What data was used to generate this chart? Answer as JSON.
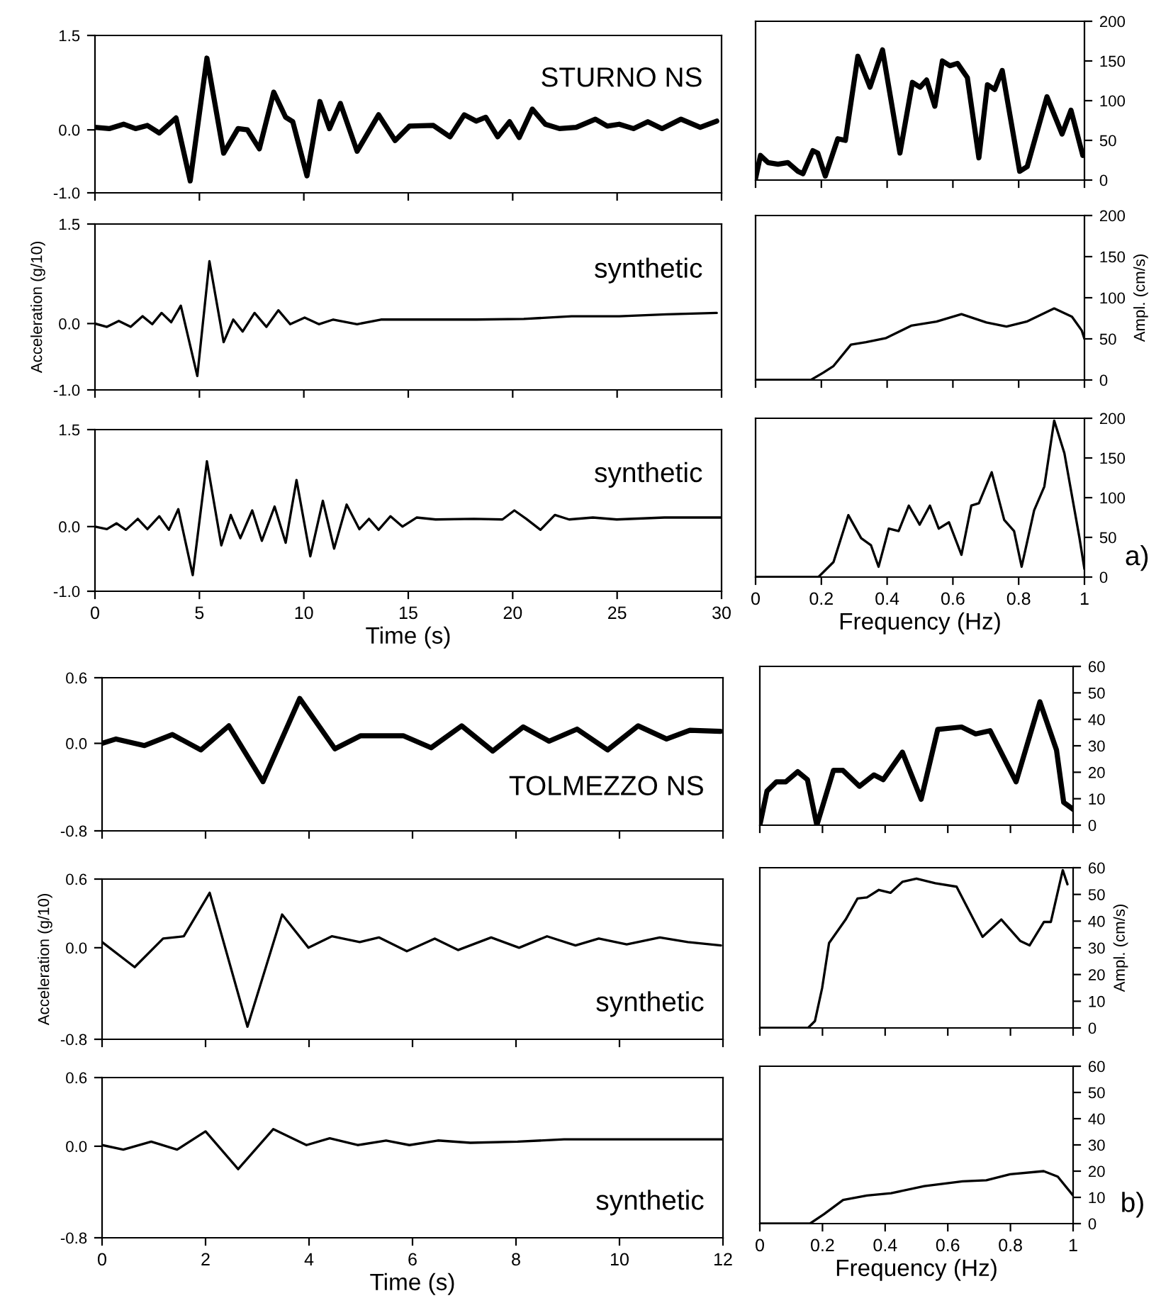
{
  "chart_data": [
    {
      "type": "line",
      "x": [
        0,
        0.68,
        1.37,
        1.94,
        2.51,
        3.08,
        3.88,
        4.56,
        5.36,
        6.16,
        6.85,
        7.3,
        7.87,
        8.56,
        9.13,
        9.47,
        10.15,
        10.77,
        11.23,
        11.75,
        12.55,
        13.58,
        14.37,
        15.06,
        16.2,
        17.0,
        17.68,
        18.25,
        18.71,
        19.28,
        19.85,
        20.31,
        20.94,
        21.56,
        22.24,
        23.04,
        23.96,
        24.53,
        25.1,
        25.78,
        26.47,
        27.15,
        28.06,
        28.98,
        29.77
      ],
      "series": [
        {
          "color": "#000000",
          "values": [
            0.04,
            0.02,
            0.09,
            0.02,
            0.07,
            -0.05,
            0.19,
            -0.81,
            1.14,
            -0.37,
            0.02,
            0,
            -0.3,
            0.6,
            0.2,
            0.13,
            -0.73,
            0.45,
            0.02,
            0.42,
            -0.34,
            0.24,
            -0.17,
            0.06,
            0.07,
            -0.11,
            0.24,
            0.14,
            0.2,
            -0.11,
            0.13,
            -0.12,
            0.33,
            0.09,
            0.02,
            0.04,
            0.17,
            0.06,
            0.09,
            0.02,
            0.13,
            0.02,
            0.17,
            0.04,
            0.14
          ]
        }
      ],
      "xlim": [
        0,
        30
      ],
      "ylim": [
        -1,
        1.5
      ],
      "xticks": [
        0,
        5,
        10,
        15,
        20,
        25,
        30
      ],
      "yticks": [
        {
          "value": -1,
          "label": "-1.0"
        },
        {
          "value": 0,
          "label": "0.0"
        },
        {
          "value": 1.5,
          "label": "1.5"
        }
      ],
      "tick_labels": "y",
      "annotations": [
        "STURNO NS"
      ]
    },
    {
      "type": "line",
      "x": [
        0,
        0.015,
        0.038,
        0.068,
        0.098,
        0.129,
        0.144,
        0.174,
        0.189,
        0.212,
        0.25,
        0.273,
        0.311,
        0.348,
        0.386,
        0.439,
        0.477,
        0.5,
        0.52,
        0.545,
        0.568,
        0.591,
        0.614,
        0.644,
        0.679,
        0.705,
        0.727,
        0.75,
        0.803,
        0.826,
        0.886,
        0.932,
        0.959,
        0.995
      ],
      "series": [
        {
          "color": "#000000",
          "values": [
            2,
            31,
            22,
            20,
            22,
            11,
            8,
            37,
            34,
            5,
            52,
            50,
            156,
            117,
            164,
            34,
            123,
            117,
            126,
            93,
            150,
            144,
            147,
            129,
            28,
            120,
            114,
            138,
            11,
            17,
            105,
            58,
            88,
            31
          ]
        }
      ],
      "xlim": [
        0,
        1
      ],
      "ylim": [
        0,
        200
      ],
      "xticks": [
        0,
        0.2,
        0.4,
        0.6,
        0.8,
        1
      ],
      "yticks": [
        0,
        50,
        100,
        150,
        200
      ],
      "tick_labels": "y"
    },
    {
      "type": "line",
      "x": [
        0,
        0.57,
        1.14,
        1.71,
        2.28,
        2.74,
        3.19,
        3.65,
        4.11,
        4.9,
        5.48,
        6.16,
        6.62,
        7.07,
        7.64,
        8.21,
        8.78,
        9.35,
        10.04,
        10.72,
        11.41,
        12.55,
        13.69,
        15.97,
        18.25,
        20.53,
        22.82,
        25.1,
        27.38,
        29.77
      ],
      "series": [
        {
          "color": "#000000",
          "values": [
            0,
            -0.05,
            0.04,
            -0.05,
            0.11,
            -0.01,
            0.16,
            0.02,
            0.27,
            -0.79,
            0.94,
            -0.28,
            0.06,
            -0.12,
            0.16,
            -0.05,
            0.2,
            -0.01,
            0.09,
            -0.01,
            0.06,
            -0.01,
            0.06,
            0.06,
            0.06,
            0.07,
            0.11,
            0.11,
            0.14,
            0.16
          ]
        }
      ],
      "xlim": [
        0,
        30
      ],
      "ylim": [
        -1,
        1.5
      ],
      "xticks": [
        0,
        5,
        10,
        15,
        20,
        25,
        30
      ],
      "yticks": [
        {
          "value": -1,
          "label": "-1.0"
        },
        {
          "value": 0,
          "label": "0.0"
        },
        {
          "value": 1.5,
          "label": "1.5"
        }
      ],
      "tick_labels": "y",
      "ylabel": "Acceleration (g/10)",
      "annotations": [
        "synthetic"
      ]
    },
    {
      "type": "line",
      "x": [
        0,
        0.168,
        0.206,
        0.237,
        0.29,
        0.336,
        0.397,
        0.473,
        0.55,
        0.626,
        0.702,
        0.763,
        0.824,
        0.908,
        0.962,
        0.992,
        1.0
      ],
      "series": [
        {
          "color": "#000000",
          "values": [
            0,
            0,
            9,
            17,
            43,
            46,
            51,
            66,
            71,
            80,
            70,
            65,
            71,
            87,
            77,
            60,
            50
          ]
        }
      ],
      "xlim": [
        0,
        1
      ],
      "ylim": [
        0,
        200
      ],
      "xticks": [
        0,
        0.2,
        0.4,
        0.6,
        0.8,
        1
      ],
      "yticks": [
        0,
        50,
        100,
        150,
        200
      ],
      "tick_labels": "y",
      "ylabel": "Ampl. (cm/s)"
    },
    {
      "type": "line",
      "x": [
        0,
        0.57,
        1.03,
        1.48,
        2.05,
        2.51,
        3.08,
        3.54,
        3.99,
        4.68,
        5.36,
        6.05,
        6.5,
        6.96,
        7.53,
        7.99,
        8.6,
        9.13,
        9.65,
        10.31,
        10.91,
        11.45,
        12.05,
        12.66,
        13.12,
        13.58,
        14.15,
        14.72,
        15.4,
        16.31,
        18.14,
        19.51,
        20.08,
        20.65,
        21.33,
        22.02,
        22.7,
        23.84,
        24.98,
        27.26,
        30
      ],
      "series": [
        {
          "color": "#000000",
          "values": [
            0,
            -0.04,
            0.05,
            -0.05,
            0.12,
            -0.04,
            0.16,
            -0.05,
            0.27,
            -0.75,
            1.01,
            -0.29,
            0.18,
            -0.18,
            0.25,
            -0.22,
            0.31,
            -0.25,
            0.72,
            -0.46,
            0.4,
            -0.34,
            0.34,
            -0.04,
            0.12,
            -0.05,
            0.16,
            0,
            0.14,
            0.11,
            0.12,
            0.11,
            0.25,
            0.12,
            -0.05,
            0.18,
            0.11,
            0.14,
            0.11,
            0.14,
            0.14
          ]
        }
      ],
      "xlim": [
        0,
        30
      ],
      "ylim": [
        -1,
        1.5
      ],
      "xticks": [
        0,
        5,
        10,
        15,
        20,
        25,
        30
      ],
      "yticks": [
        {
          "value": -1,
          "label": "-1.0"
        },
        {
          "value": 0,
          "label": "0.0"
        },
        {
          "value": 1.5,
          "label": "1.5"
        }
      ],
      "xlabel": "Time (s)",
      "annotations": [
        "synthetic"
      ]
    },
    {
      "type": "line",
      "x": [
        0,
        0.191,
        0.237,
        0.282,
        0.321,
        0.351,
        0.374,
        0.405,
        0.435,
        0.466,
        0.499,
        0.53,
        0.557,
        0.588,
        0.626,
        0.656,
        0.679,
        0.718,
        0.756,
        0.786,
        0.809,
        0.847,
        0.878,
        0.908,
        0.939,
        0.985,
        1.0
      ],
      "series": [
        {
          "color": "#000000",
          "values": [
            0,
            0,
            19,
            78,
            49,
            40,
            13,
            61,
            58,
            90,
            66,
            90,
            61,
            69,
            28,
            90,
            93,
            132,
            72,
            58,
            13,
            84,
            114,
            197,
            156,
            49,
            10
          ]
        }
      ],
      "xlim": [
        0,
        1
      ],
      "ylim": [
        0,
        200
      ],
      "xticks": [
        0,
        0.2,
        0.4,
        0.6,
        0.8,
        1
      ],
      "yticks": [
        0,
        50,
        100,
        150,
        200
      ],
      "xlabel": "Frequency (Hz)",
      "annotations": [
        "a)"
      ]
    },
    {
      "type": "line",
      "x": [
        0,
        0.27,
        0.82,
        1.36,
        1.91,
        2.45,
        3.11,
        3.82,
        4.5,
        5.0,
        5.82,
        6.36,
        6.95,
        7.55,
        8.14,
        8.64,
        9.18,
        9.77,
        10.36,
        10.91,
        11.36,
        11.95
      ],
      "series": [
        {
          "color": "#000000",
          "values": [
            0,
            0.04,
            -0.02,
            0.08,
            -0.06,
            0.16,
            -0.35,
            0.41,
            -0.05,
            0.07,
            0.07,
            -0.04,
            0.16,
            -0.07,
            0.15,
            0.02,
            0.13,
            -0.06,
            0.16,
            0.04,
            0.12,
            0.11
          ]
        }
      ],
      "xlim": [
        0,
        12
      ],
      "ylim": [
        -0.8,
        0.6
      ],
      "xticks": [
        0,
        2,
        4,
        6,
        8,
        10,
        12
      ],
      "yticks": [
        {
          "value": -0.8,
          "label": "-0.8"
        },
        {
          "value": 0,
          "label": "0.0"
        },
        {
          "value": 0.6,
          "label": "0.6"
        }
      ],
      "tick_labels": "y",
      "annotations": [
        "TOLMEZZO NS"
      ]
    },
    {
      "type": "line",
      "x": [
        0,
        0.023,
        0.053,
        0.083,
        0.121,
        0.152,
        0.182,
        0.235,
        0.265,
        0.318,
        0.364,
        0.394,
        0.455,
        0.515,
        0.568,
        0.644,
        0.689,
        0.735,
        0.818,
        0.894,
        0.947,
        0.97,
        1.0
      ],
      "series": [
        {
          "color": "#000000",
          "values": [
            0,
            12.9,
            16.4,
            16.4,
            20.2,
            17.2,
            0,
            20.7,
            20.7,
            14.7,
            19,
            17.2,
            27.6,
            9.8,
            36.2,
            37.1,
            34.5,
            35.7,
            16.4,
            46.6,
            28.4,
            8.6,
            6
          ]
        }
      ],
      "xlim": [
        0,
        1
      ],
      "ylim": [
        0,
        60
      ],
      "xticks": [
        0,
        0.2,
        0.4,
        0.6,
        0.8,
        1
      ],
      "yticks": [
        0,
        10,
        20,
        30,
        40,
        50,
        60
      ],
      "tick_labels": "y"
    },
    {
      "type": "line",
      "x": [
        0,
        0.63,
        1.18,
        1.58,
        2.08,
        2.81,
        3.48,
        3.99,
        4.44,
        4.98,
        5.35,
        5.89,
        6.43,
        6.88,
        7.52,
        8.06,
        8.6,
        9.15,
        9.6,
        10.14,
        10.78,
        11.32,
        11.96
      ],
      "series": [
        {
          "color": "#000000",
          "values": [
            0.05,
            -0.17,
            0.08,
            0.1,
            0.48,
            -0.69,
            0.29,
            0,
            0.1,
            0.05,
            0.09,
            -0.03,
            0.08,
            -0.02,
            0.09,
            0,
            0.1,
            0.02,
            0.08,
            0.03,
            0.09,
            0.05,
            0.02
          ]
        }
      ],
      "xlim": [
        0,
        12
      ],
      "ylim": [
        -0.8,
        0.6
      ],
      "xticks": [
        0,
        2,
        4,
        6,
        8,
        10,
        12
      ],
      "yticks": [
        {
          "value": -0.8,
          "label": "-0.8"
        },
        {
          "value": 0,
          "label": "0.0"
        },
        {
          "value": 0.6,
          "label": "0.6"
        }
      ],
      "tick_labels": "y",
      "ylabel": "Acceleration (g/10)",
      "annotations": [
        "synthetic"
      ]
    },
    {
      "type": "line",
      "x": [
        0,
        0.154,
        0.176,
        0.199,
        0.221,
        0.274,
        0.312,
        0.342,
        0.38,
        0.417,
        0.455,
        0.5,
        0.56,
        0.628,
        0.711,
        0.771,
        0.831,
        0.861,
        0.907,
        0.929,
        0.967,
        0.982
      ],
      "series": [
        {
          "color": "#000000",
          "values": [
            0,
            0,
            2.6,
            15,
            31.8,
            40.6,
            48.5,
            48.9,
            51.7,
            50.6,
            54.7,
            55.9,
            54.2,
            52.9,
            34.1,
            40.6,
            32.6,
            30.9,
            39.7,
            39.7,
            59.1,
            53.8
          ]
        }
      ],
      "xlim": [
        0,
        1
      ],
      "ylim": [
        0,
        60
      ],
      "xticks": [
        0,
        0.2,
        0.4,
        0.6,
        0.8,
        1
      ],
      "yticks": [
        0,
        10,
        20,
        30,
        40,
        50,
        60
      ],
      "tick_labels": "y",
      "ylabel": "Ampl. (cm/s)"
    },
    {
      "type": "line",
      "x": [
        0,
        0.41,
        0.95,
        1.45,
        2.0,
        2.63,
        3.31,
        3.95,
        4.4,
        4.94,
        5.49,
        5.94,
        6.49,
        7.12,
        8.03,
        8.93,
        9.84,
        10.75,
        12
      ],
      "series": [
        {
          "color": "#000000",
          "values": [
            0.01,
            -0.03,
            0.04,
            -0.03,
            0.13,
            -0.2,
            0.15,
            0.01,
            0.07,
            0.01,
            0.05,
            0.01,
            0.05,
            0.03,
            0.04,
            0.06,
            0.06,
            0.06,
            0.06
          ]
        }
      ],
      "xlim": [
        0,
        12
      ],
      "ylim": [
        -0.8,
        0.6
      ],
      "xticks": [
        0,
        2,
        4,
        6,
        8,
        10,
        12
      ],
      "yticks": [
        {
          "value": -0.8,
          "label": "-0.8"
        },
        {
          "value": 0,
          "label": "0.0"
        },
        {
          "value": 0.6,
          "label": "0.6"
        }
      ],
      "xlabel": "Time (s)",
      "annotations": [
        "synthetic"
      ]
    },
    {
      "type": "line",
      "x": [
        0,
        0.16,
        0.205,
        0.266,
        0.342,
        0.419,
        0.525,
        0.647,
        0.723,
        0.799,
        0.906,
        0.951,
        1
      ],
      "series": [
        {
          "color": "#000000",
          "values": [
            0,
            0,
            3.6,
            9,
            10.7,
            11.6,
            14.3,
            16.1,
            16.5,
            18.8,
            20,
            17.9,
            10.7
          ]
        }
      ],
      "xlim": [
        0,
        1
      ],
      "ylim": [
        0,
        60
      ],
      "xticks": [
        0,
        0.2,
        0.4,
        0.6,
        0.8,
        1
      ],
      "yticks": [
        0,
        10,
        20,
        30,
        40,
        50,
        60
      ],
      "xlabel": "Frequency (Hz)",
      "annotations": [
        "b)"
      ]
    }
  ]
}
